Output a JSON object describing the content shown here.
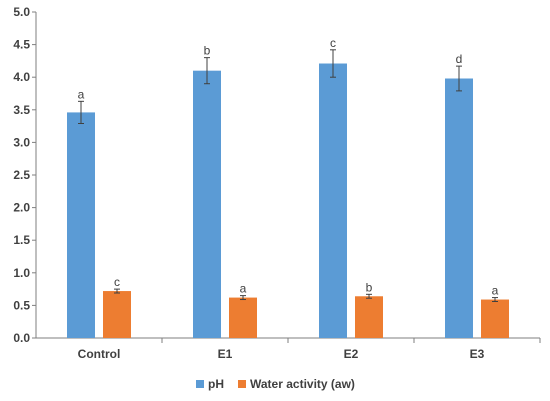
{
  "chart_data": {
    "type": "bar",
    "categories": [
      "Control",
      "E1",
      "E2",
      "E3"
    ],
    "series": [
      {
        "name": "pH",
        "color": "#5B9BD5",
        "values": [
          3.46,
          4.1,
          4.21,
          3.98
        ],
        "errors": [
          0.17,
          0.2,
          0.21,
          0.19
        ],
        "sig_labels": [
          "a",
          "b",
          "c",
          "d"
        ]
      },
      {
        "name": "Water activity (aw)",
        "color": "#ED7D31",
        "values": [
          0.72,
          0.62,
          0.64,
          0.59
        ],
        "errors": [
          0.03,
          0.03,
          0.03,
          0.03
        ],
        "sig_labels": [
          "c",
          "a",
          "b",
          "a"
        ]
      }
    ],
    "ylim": [
      0.0,
      5.0
    ],
    "ytick_step": 0.5,
    "ytick_labels": [
      "0.0",
      "0.5",
      "1.0",
      "1.5",
      "2.0",
      "2.5",
      "3.0",
      "3.5",
      "4.0",
      "4.5",
      "5.0"
    ],
    "grid": false,
    "legend_position": "bottom",
    "axis_color": "#7f7f7f"
  }
}
